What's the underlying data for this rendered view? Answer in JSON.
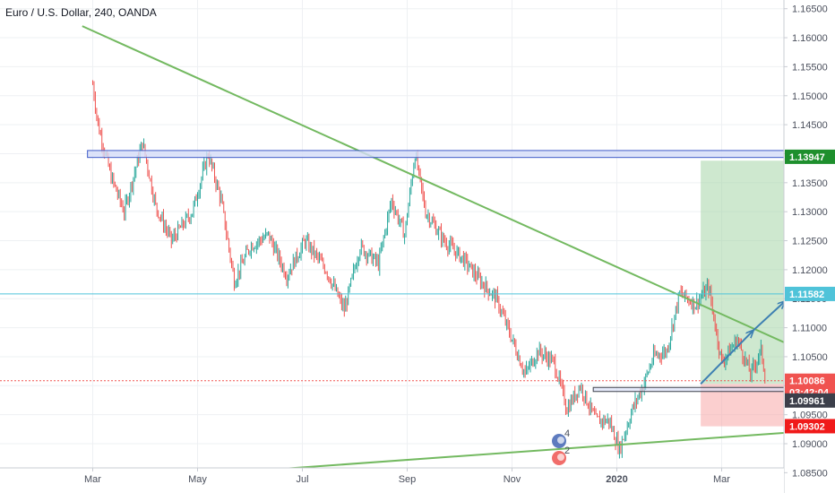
{
  "header": {
    "title": "Euro / U.S. Dollar, 240, OANDA"
  },
  "chart_data": {
    "type": "candlestick",
    "symbol": "Euro / U.S. Dollar",
    "interval": "240",
    "source": "OANDA",
    "ylim": [
      1.0815,
      1.1665
    ],
    "y_ticks": [
      "1.16500",
      "1.16000",
      "1.15500",
      "1.15000",
      "1.14500",
      "1.14000",
      "1.13500",
      "1.13000",
      "1.12500",
      "1.12000",
      "1.11500",
      "1.11000",
      "1.10500",
      "1.10000",
      "1.09500",
      "1.09000",
      "1.08500"
    ],
    "x_ticks": [
      "Mar",
      "May",
      "Jul",
      "Sep",
      "Nov",
      "2020",
      "Mar"
    ],
    "price_path": [
      [
        0,
        1.152
      ],
      [
        0.1,
        1.145
      ],
      [
        0.35,
        1.136
      ],
      [
        0.6,
        1.13
      ],
      [
        0.95,
        1.142
      ],
      [
        1.2,
        1.131
      ],
      [
        1.5,
        1.125
      ],
      [
        1.9,
        1.13
      ],
      [
        2.2,
        1.14
      ],
      [
        2.45,
        1.132
      ],
      [
        2.7,
        1.118
      ],
      [
        3.0,
        1.124
      ],
      [
        3.35,
        1.126
      ],
      [
        3.7,
        1.119
      ],
      [
        4.05,
        1.125
      ],
      [
        4.45,
        1.12
      ],
      [
        4.8,
        1.113
      ],
      [
        5.1,
        1.124
      ],
      [
        5.45,
        1.121
      ],
      [
        5.7,
        1.132
      ],
      [
        5.95,
        1.126
      ],
      [
        6.15,
        1.14
      ],
      [
        6.35,
        1.13
      ],
      [
        6.7,
        1.125
      ],
      [
        7.05,
        1.122
      ],
      [
        7.4,
        1.118
      ],
      [
        7.7,
        1.115
      ],
      [
        8.0,
        1.108
      ],
      [
        8.25,
        1.102
      ],
      [
        8.5,
        1.106
      ],
      [
        8.8,
        1.104
      ],
      [
        9.05,
        1.096
      ],
      [
        9.3,
        1.1
      ],
      [
        9.6,
        1.094
      ],
      [
        9.85,
        1.094
      ],
      [
        10.05,
        1.089
      ],
      [
        10.3,
        1.096
      ],
      [
        10.5,
        1.1
      ],
      [
        10.7,
        1.105
      ],
      [
        10.95,
        1.106
      ],
      [
        11.2,
        1.116
      ],
      [
        11.5,
        1.114
      ],
      [
        11.75,
        1.117
      ],
      [
        12.0,
        1.104
      ],
      [
        12.3,
        1.108
      ],
      [
        12.55,
        1.102
      ],
      [
        12.75,
        1.106
      ],
      [
        12.85,
        1.1008
      ]
    ],
    "price_levels": [
      {
        "label": "1.13947",
        "value": 1.13947,
        "color": "#1e8f2d"
      },
      {
        "label": "1.11582",
        "value": 1.11582,
        "color": "#4fc3d9"
      },
      {
        "label": "1.10086",
        "value": 1.10086,
        "color": "#f05350"
      },
      {
        "label": "03:42:04",
        "value": 1.0989,
        "color": "#f05350"
      },
      {
        "label": "1.09961",
        "value": 1.09745,
        "color": "#3c3f4a"
      },
      {
        "label": "1.09302",
        "value": 1.09302,
        "color": "#f01a1a"
      }
    ],
    "resistance_zone": {
      "x": [
        -0.1,
        15.25
      ],
      "y": [
        1.13935,
        1.14055
      ]
    },
    "support_zone": {
      "x": [
        9.55,
        14.6
      ],
      "y": [
        1.099,
        1.0997
      ]
    },
    "trend_lines": [
      {
        "points": [
          [
            -0.2,
            1.162
          ],
          [
            16.5,
            1.094
          ]
        ],
        "color": "#73b960"
      },
      {
        "points": [
          [
            -0.2,
            1.0832
          ],
          [
            16.5,
            1.094
          ]
        ],
        "color": "#73b960"
      }
    ],
    "position": {
      "x": [
        11.6,
        15.1
      ],
      "entry": 1.1003,
      "target": 1.1388,
      "stop": 1.093
    },
    "forecast_path": [
      [
        11.6,
        1.1003
      ],
      [
        12.6,
        1.1095
      ],
      [
        13.2,
        1.1145
      ],
      [
        13.45,
        1.106
      ],
      [
        15.2,
        1.1385
      ]
    ],
    "last_price_line": 1.10086,
    "badges": [
      {
        "count": "4"
      },
      {
        "count": "2"
      }
    ]
  }
}
